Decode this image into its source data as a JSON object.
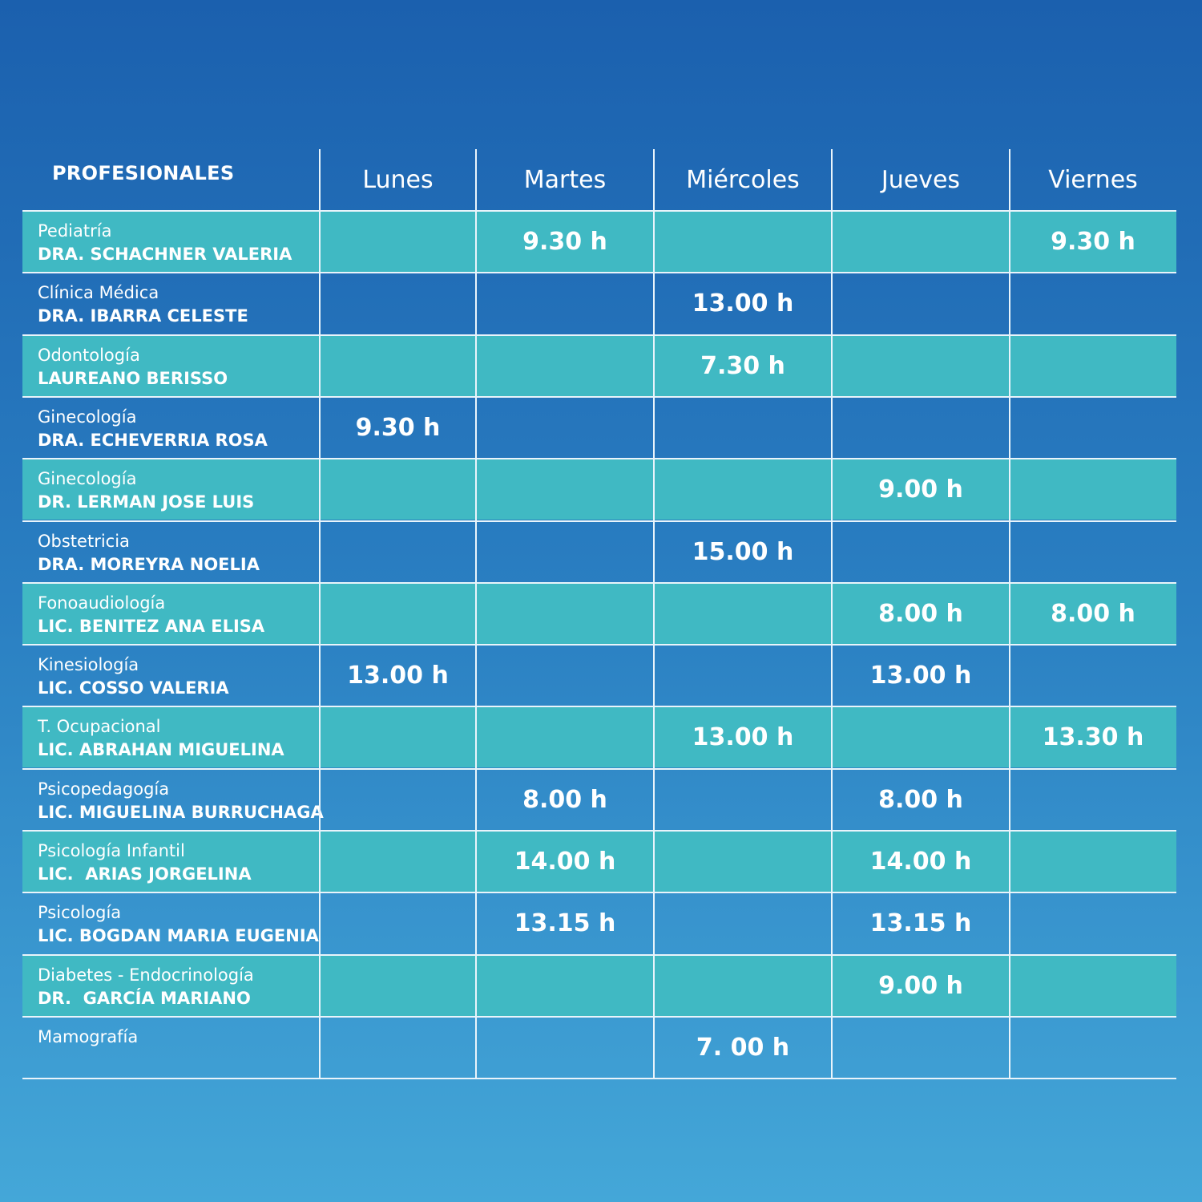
{
  "header": {
    "professionals": "PROFESIONALES",
    "days": [
      "Lunes",
      "Martes",
      "Miércoles",
      "Jueves",
      "Viernes"
    ]
  },
  "rows": [
    {
      "specialty": "Pediatría",
      "name": "DRA. SCHACHNER VALERIA",
      "times": [
        "",
        "9.30 h",
        "",
        "",
        "9.30 h"
      ]
    },
    {
      "specialty": "Clínica Médica",
      "name": "DRA. IBARRA CELESTE",
      "times": [
        "",
        "",
        "13.00 h",
        "",
        ""
      ]
    },
    {
      "specialty": "Odontología",
      "name": "LAUREANO BERISSO",
      "times": [
        "",
        "",
        "7.30 h",
        "",
        ""
      ]
    },
    {
      "specialty": "Ginecología",
      "name": "DRA. ECHEVERRIA ROSA",
      "times": [
        "9.30 h",
        "",
        "",
        "",
        ""
      ]
    },
    {
      "specialty": "Ginecología",
      "name": "DR. LERMAN JOSE LUIS",
      "times": [
        "",
        "",
        "",
        "9.00 h",
        ""
      ]
    },
    {
      "specialty": "Obstetricia",
      "name": "DRA. MOREYRA NOELIA",
      "times": [
        "",
        "",
        "15.00 h",
        "",
        ""
      ]
    },
    {
      "specialty": "Fonoaudiología",
      "name": "LIC. BENITEZ ANA ELISA",
      "times": [
        "",
        "",
        "",
        "8.00 h",
        "8.00 h"
      ]
    },
    {
      "specialty": "Kinesiología",
      "name": "LIC. COSSO VALERIA",
      "times": [
        "13.00 h",
        "",
        "",
        "13.00 h",
        ""
      ]
    },
    {
      "specialty": "T. Ocupacional",
      "name": "LIC. ABRAHAN MIGUELINA",
      "times": [
        "",
        "",
        "13.00 h",
        "",
        "13.30 h"
      ]
    },
    {
      "specialty": "Psicopedagogía",
      "name": "LIC. MIGUELINA BURRUCHAGA",
      "times": [
        "",
        "8.00 h",
        "",
        "8.00 h",
        ""
      ]
    },
    {
      "specialty": "Psicología Infantil",
      "name": "LIC.  ARIAS JORGELINA",
      "times": [
        "",
        "14.00 h",
        "",
        "14.00 h",
        ""
      ]
    },
    {
      "specialty": "Psicología",
      "name": "LIC. BOGDAN MARIA EUGENIA",
      "times": [
        "",
        "13.15 h",
        "",
        "13.15 h",
        ""
      ]
    },
    {
      "specialty": "Diabetes - Endocrinología",
      "name": "DR.  GARCÍA MARIANO",
      "times": [
        "",
        "",
        "",
        "9.00 h",
        ""
      ]
    },
    {
      "specialty": "Mamografía",
      "name": "",
      "times": [
        "",
        "",
        "7. 00 h",
        "",
        ""
      ]
    }
  ],
  "colors": {
    "teal_row": "#40b9c3",
    "background_top": "#1b60ae",
    "background_bottom": "#44a7d8",
    "grid_line": "#e9f4fb",
    "text": "#ffffff"
  }
}
